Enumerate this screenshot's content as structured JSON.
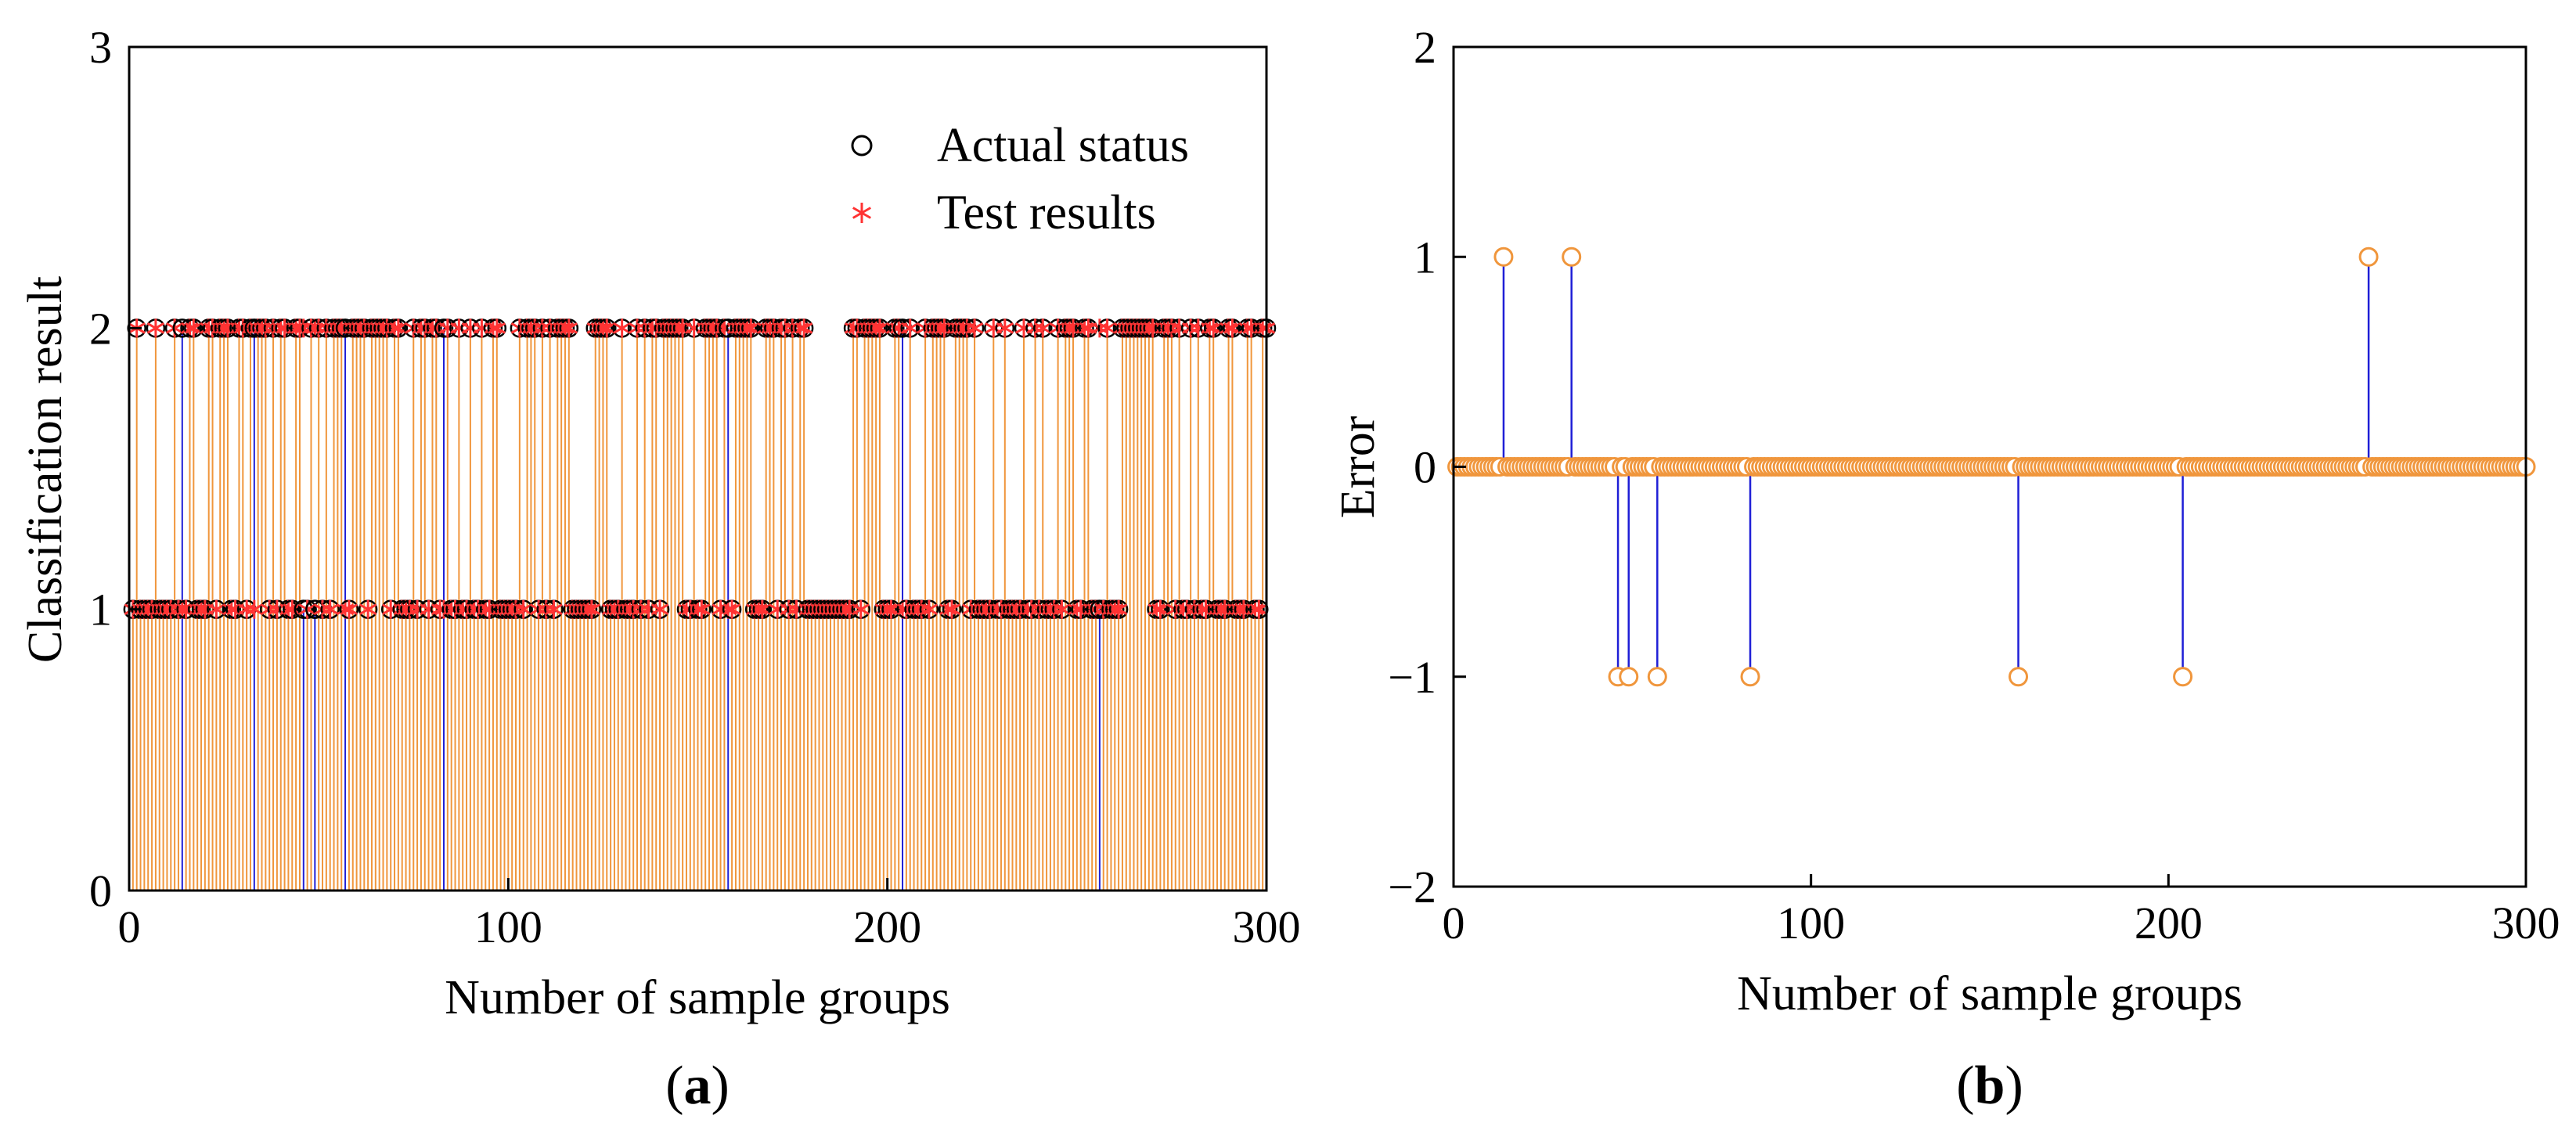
{
  "colors": {
    "actual_marker": "#000000",
    "test_marker": "#ff3333",
    "orange_stem": "#f0963c",
    "blue_stem": "#1f1fd6",
    "error_marker": "#f0963c"
  },
  "panel_labels": {
    "a": {
      "open": "(",
      "letter": "a",
      "close": ")"
    },
    "b": {
      "open": "(",
      "letter": "b",
      "close": ")"
    }
  },
  "chart_data": [
    {
      "id": "a",
      "type": "scatter",
      "title": "",
      "xlabel": "Number of sample groups",
      "ylabel": "Classification result",
      "xlim": [
        0,
        300
      ],
      "ylim": [
        0,
        3
      ],
      "xticks": [
        0,
        100,
        200,
        300
      ],
      "yticks": [
        0,
        1,
        2,
        3
      ],
      "legend": {
        "position": "top-right",
        "entries": [
          "Actual status",
          "Test results"
        ]
      },
      "series": [
        {
          "name": "Actual status",
          "marker": "circle",
          "description": "class label (1 or 2) for each of samples 1-300"
        },
        {
          "name": "Test results",
          "marker": "asterisk",
          "description": "predicted class label (1 or 2) for each of samples 1-300"
        }
      ],
      "misclassified_samples": [
        14,
        33,
        46,
        49,
        57,
        83,
        158,
        204,
        256
      ],
      "gap_in_class2": [
        181,
        189
      ]
    },
    {
      "id": "b",
      "type": "scatter",
      "title": "",
      "xlabel": "Number of sample groups",
      "ylabel": "Error",
      "xlim": [
        0,
        300
      ],
      "ylim": [
        -2,
        2
      ],
      "xticks": [
        0,
        100,
        200,
        300
      ],
      "yticks": [
        -2,
        -1,
        0,
        1,
        2
      ],
      "series": [
        {
          "name": "Error",
          "description": "error for samples 1-300; 0 everywhere except listed points",
          "nonzero_points": [
            {
              "x": 14,
              "y": 1
            },
            {
              "x": 33,
              "y": 1
            },
            {
              "x": 46,
              "y": -1
            },
            {
              "x": 49,
              "y": -1
            },
            {
              "x": 57,
              "y": -1
            },
            {
              "x": 83,
              "y": -1
            },
            {
              "x": 158,
              "y": -1
            },
            {
              "x": 204,
              "y": -1
            },
            {
              "x": 256,
              "y": 1
            }
          ]
        }
      ]
    }
  ]
}
